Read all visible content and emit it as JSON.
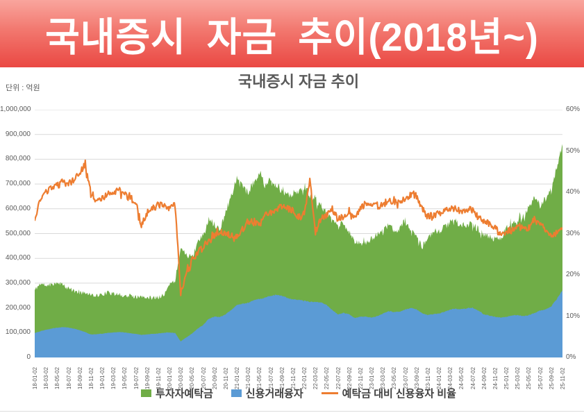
{
  "banner": {
    "title": "국내증시 자금 추이(2018년~)",
    "text_color": "#ffffff",
    "bg_gradient_top": "#f9a59d",
    "bg_gradient_bottom": "#ea4843"
  },
  "chart": {
    "title": "국내증시 자금 추이",
    "unit_label": "단위 : 억원"
  },
  "chart_data": {
    "type": "area+line",
    "title": "국내증시 자금 추이",
    "x_description": "monthly points, 2018-01 through 2025-11, x ticks every 2 months",
    "x_tick_labels": [
      "18-01-02",
      "18-03-02",
      "18-05-02",
      "18-07-02",
      "18-09-02",
      "18-11-02",
      "19-01-02",
      "19-03-02",
      "19-05-02",
      "19-07-02",
      "19-09-02",
      "19-11-02",
      "20-01-02",
      "20-03-02",
      "20-05-02",
      "20-07-02",
      "20-09-02",
      "20-11-02",
      "21-01-02",
      "21-03-02",
      "21-05-02",
      "21-07-02",
      "21-09-02",
      "21-11-02",
      "22-01-02",
      "22-03-02",
      "22-05-02",
      "22-07-02",
      "22-09-02",
      "22-11-02",
      "23-01-02",
      "23-03-02",
      "23-05-02",
      "23-07-02",
      "23-09-02",
      "23-11-02",
      "24-01-02",
      "24-03-02",
      "24-05-02",
      "24-07-02",
      "24-09-02",
      "24-11-02",
      "25-01-02",
      "25-03-02",
      "25-05-02",
      "25-07-02",
      "25-09-02",
      "25-11-02"
    ],
    "y_left_axis": {
      "min": 0,
      "max": 1000000,
      "ticks": [
        "1,000,000",
        "900,000",
        "800,000",
        "700,000",
        "600,000",
        "500,000",
        "400,000",
        "300,000",
        "200,000",
        "100,000",
        "0"
      ],
      "unit": "억원"
    },
    "y_right_axis": {
      "min": 0,
      "max": 60,
      "ticks": [
        "60%",
        "50%",
        "40%",
        "30%",
        "20%",
        "10%",
        "0%"
      ],
      "unit": "%"
    },
    "gridline_color": "#d9d9d9",
    "legend_position": "bottom",
    "series": [
      {
        "name": "투자자예탁금",
        "type": "area",
        "axis": "left",
        "color": "#70AD47",
        "values": [
          272000,
          298000,
          292000,
          296000,
          305000,
          292000,
          278000,
          268000,
          262000,
          262000,
          256000,
          250000,
          254000,
          262000,
          256000,
          254000,
          248000,
          250000,
          244000,
          242000,
          244000,
          240000,
          244000,
          254000,
          292000,
          312000,
          445000,
          418000,
          402000,
          462000,
          492000,
          556000,
          540000,
          516000,
          582000,
          656000,
          722000,
          692000,
          668000,
          706000,
          748000,
          696000,
          706000,
          696000,
          676000,
          656000,
          662000,
          672000,
          692000,
          652000,
          642000,
          616000,
          582000,
          546000,
          542000,
          536000,
          506000,
          466000,
          462000,
          458000,
          482000,
          496000,
          506000,
          532000,
          516000,
          522000,
          552000,
          516000,
          496000,
          446000,
          472000,
          512000,
          506000,
          526000,
          546000,
          549000,
          536000,
          533000,
          541000,
          516000,
          496000,
          491000,
          476000,
          481000,
          521000,
          531000,
          556000,
          571000,
          601000,
          641000,
          616000,
          641000,
          671000,
          771000,
          861000
        ]
      },
      {
        "name": "신용거래융자",
        "type": "area",
        "axis": "left",
        "color": "#5B9BD5",
        "values": [
          99000,
          106000,
          112000,
          117000,
          120000,
          123000,
          121000,
          116000,
          110000,
          102000,
          93000,
          94000,
          96000,
          99000,
          101000,
          103000,
          101000,
          98000,
          95000,
          91000,
          93000,
          95000,
          97000,
          99000,
          101000,
          99000,
          65000,
          81000,
          96000,
          116000,
          131000,
          156000,
          165000,
          163000,
          175000,
          191000,
          212000,
          216000,
          221000,
          231000,
          236000,
          241000,
          249000,
          253000,
          250000,
          240000,
          234000,
          232000,
          229000,
          224000,
          224000,
          222000,
          212000,
          192000,
          174000,
          180000,
          174000,
          159000,
          164000,
          165000,
          161000,
          167000,
          177000,
          187000,
          184000,
          184000,
          194000,
          200000,
          194000,
          179000,
          171000,
          175000,
          177000,
          184000,
          194000,
          197000,
          194000,
          199000,
          201000,
          189000,
          174000,
          169000,
          164000,
          161000,
          164000,
          169000,
          171000,
          167000,
          171000,
          179000,
          189000,
          194000,
          206000,
          236000,
          272000
        ]
      },
      {
        "name": "예탁금 대비 신용융자 비율",
        "type": "line",
        "axis": "right",
        "color": "#ED7D31",
        "values": [
          33,
          38.5,
          40,
          41,
          41.5,
          42.5,
          42,
          43,
          44.5,
          47,
          40,
          38,
          38.5,
          39.5,
          40,
          40.5,
          39.5,
          38.5,
          37.5,
          32,
          35,
          36,
          37,
          36.5,
          36,
          37,
          15.5,
          20,
          23.5,
          25.5,
          26.5,
          28,
          29.5,
          30.5,
          30,
          29.5,
          29.5,
          31,
          33,
          33,
          32,
          34.5,
          35,
          36,
          36.5,
          36.5,
          35.5,
          34,
          35,
          43,
          30.5,
          33.5,
          34.5,
          36,
          33.5,
          34,
          35.5,
          33.5,
          36,
          37.5,
          37.5,
          36.5,
          37,
          38,
          37.5,
          37.5,
          38.5,
          39.5,
          39.5,
          36,
          34,
          34.5,
          35,
          35.5,
          36,
          36,
          35.5,
          36,
          35.5,
          34,
          33,
          32.5,
          31.5,
          29.5,
          30.5,
          31,
          32,
          31,
          31.5,
          33.5,
          32,
          31,
          30,
          29.5,
          31.5
        ]
      }
    ]
  }
}
